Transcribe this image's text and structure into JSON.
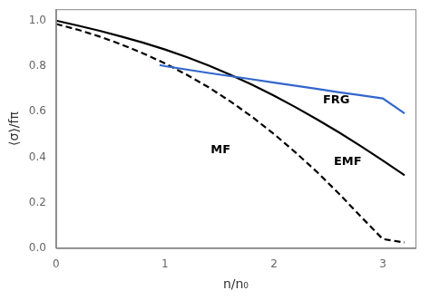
{
  "chart_data": {
    "type": "line",
    "title": "",
    "xlabel": "n/n₀",
    "ylabel": "⟨σ⟩/fπ",
    "xlim": [
      0,
      3.3
    ],
    "ylim": [
      0,
      1.05
    ],
    "xticks": [
      0,
      1,
      2,
      3
    ],
    "yticks": [
      {
        "value": 0,
        "label": "0.0"
      },
      0.2,
      0.4,
      0.6,
      0.8,
      {
        "value": 1,
        "label": "1.0"
      }
    ],
    "grid": false,
    "series": [
      {
        "name": "FRG",
        "color": "#3366cc",
        "line_style": "solid",
        "x": [
          0.95,
          1.0,
          1.2,
          1.4,
          1.6,
          1.8,
          2.0,
          2.2,
          2.4,
          2.6,
          2.8,
          3.0,
          3.2
        ],
        "values": [
          0.805,
          0.8,
          0.785,
          0.77,
          0.756,
          0.742,
          0.728,
          0.714,
          0.7,
          0.685,
          0.672,
          0.658,
          0.592
        ]
      },
      {
        "name": "EMF",
        "color": "black",
        "line_style": "solid",
        "x": [
          0.0,
          0.2,
          0.4,
          0.6,
          0.8,
          1.0,
          1.2,
          1.4,
          1.6,
          1.8,
          2.0,
          2.2,
          2.4,
          2.6,
          2.8,
          3.0,
          3.2
        ],
        "values": [
          1.0,
          0.978,
          0.955,
          0.93,
          0.903,
          0.873,
          0.84,
          0.803,
          0.762,
          0.718,
          0.67,
          0.619,
          0.565,
          0.508,
          0.448,
          0.385,
          0.32
        ]
      },
      {
        "name": "MF",
        "color": "black",
        "line_style": "dashed",
        "x": [
          0.0,
          0.2,
          0.4,
          0.6,
          0.8,
          1.0,
          1.2,
          1.4,
          1.6,
          1.8,
          2.0,
          2.2,
          2.4,
          2.6,
          2.8,
          3.0,
          3.2
        ],
        "values": [
          0.985,
          0.96,
          0.93,
          0.895,
          0.856,
          0.812,
          0.762,
          0.707,
          0.645,
          0.577,
          0.502,
          0.42,
          0.333,
          0.238,
          0.138,
          0.04,
          0.025
        ]
      }
    ],
    "annotations": [
      {
        "text": "FRG",
        "x": 2.45,
        "y": 0.65
      },
      {
        "text": "EMF",
        "x": 2.55,
        "y": 0.38
      },
      {
        "text": "MF",
        "x": 1.42,
        "y": 0.43
      }
    ]
  }
}
